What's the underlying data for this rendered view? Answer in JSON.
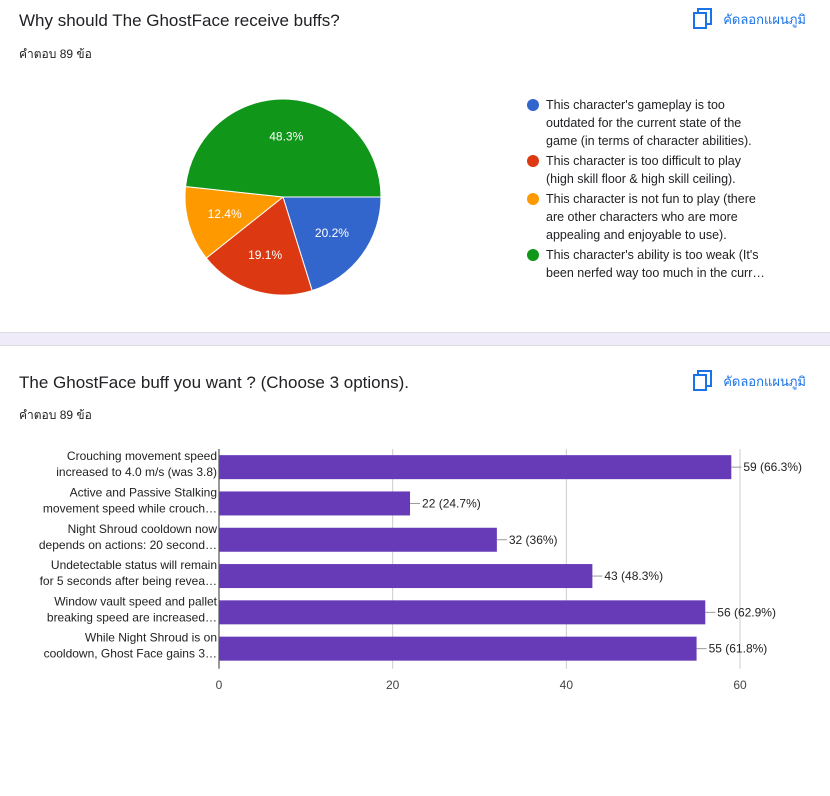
{
  "question1": {
    "title": "Why should The GhostFace receive buffs?",
    "responses": "คำตอบ 89 ข้อ",
    "copy_label": "คัดลอกแผนภูมิ"
  },
  "question2": {
    "title": "The GhostFace buff you want ? (Choose 3 options).",
    "responses": "คำตอบ 89 ข้อ",
    "copy_label": "คัดลอกแผนภูมิ"
  },
  "chart_data": [
    {
      "type": "pie",
      "legend_position": "right",
      "slices": [
        {
          "label": "This character's gameplay is too outdated for the current state of the game (in terms of character abilities).",
          "display_label": [
            "This character's gameplay is too",
            "outdated for the current state of the",
            "game (in terms of character abilities)."
          ],
          "value": 20.2,
          "value_label": "20.2%",
          "color": "#3366cc"
        },
        {
          "label": "This character is too difficult to play (high skill floor & high skill ceiling).",
          "display_label": [
            "This character is too difficult to play",
            "(high skill floor & high skill ceiling)."
          ],
          "value": 19.1,
          "value_label": "19.1%",
          "color": "#dc3912"
        },
        {
          "label": "This character is not fun to play (there are other characters who are more appealing and enjoyable to use).",
          "display_label": [
            "This character is not fun to play (there",
            "are other characters who are more",
            "appealing and enjoyable to use)."
          ],
          "value": 12.4,
          "value_label": "12.4%",
          "color": "#ff9900"
        },
        {
          "label": "This character's ability is too weak (It's been nerfed way too much in the curr…",
          "display_label": [
            "This character's ability is too weak (It's",
            "been nerfed way too much in the curr…"
          ],
          "value": 48.3,
          "value_label": "48.3%",
          "color": "#109618"
        }
      ]
    },
    {
      "type": "bar",
      "orientation": "horizontal",
      "color": "#673ab7",
      "categories": [
        [
          "Crouching movement speed",
          "increased to 4.0 m/s (was 3.8)"
        ],
        [
          "Active and Passive Stalking",
          "movement speed while crouch…"
        ],
        [
          "Night Shroud cooldown now",
          "depends on actions: 20 second…"
        ],
        [
          "Undetectable status will remain",
          "for 5 seconds after being revea…"
        ],
        [
          "Window vault speed and pallet",
          "breaking speed are increased…"
        ],
        [
          "While Night Shroud is on",
          "cooldown, Ghost Face gains 3…"
        ]
      ],
      "values": [
        59,
        22,
        32,
        43,
        56,
        55
      ],
      "value_labels": [
        "59 (66.3%)",
        "22 (24.7%)",
        "32 (36%)",
        "43 (48.3%)",
        "56 (62.9%)",
        "55 (61.8%)"
      ],
      "xlim": [
        0,
        60
      ],
      "xticks": [
        0,
        20,
        40,
        60
      ],
      "grid": true
    }
  ]
}
